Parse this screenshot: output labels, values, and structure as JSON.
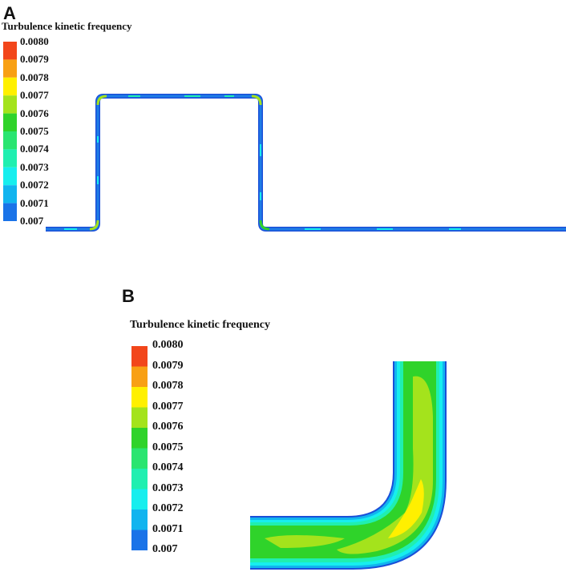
{
  "panels": [
    {
      "letter": "A",
      "legend": {
        "title": "Turbulence kinetic frequency",
        "labels": [
          "0.0080",
          "0.0079",
          "0.0078",
          "0.0077",
          "0.0076",
          "0.0075",
          "0.0074",
          "0.0073",
          "0.0072",
          "0.0071",
          "0.007"
        ]
      },
      "description_colors": "blue pipe with green/cyan highlights at bends"
    },
    {
      "letter": "B",
      "legend": {
        "title": "Turbulence kinetic frequency",
        "labels": [
          "0.0080",
          "0.0079",
          "0.0078",
          "0.0077",
          "0.0076",
          "0.0075",
          "0.0074",
          "0.0073",
          "0.0072",
          "0.0071",
          "0.007"
        ]
      }
    }
  ],
  "colorbar": [
    "#f2461b",
    "#f8a014",
    "#fff000",
    "#a4e31c",
    "#2fd32a",
    "#2ae570",
    "#20efb0",
    "#17eeee",
    "#11b4ef",
    "#1a73e8"
  ]
}
